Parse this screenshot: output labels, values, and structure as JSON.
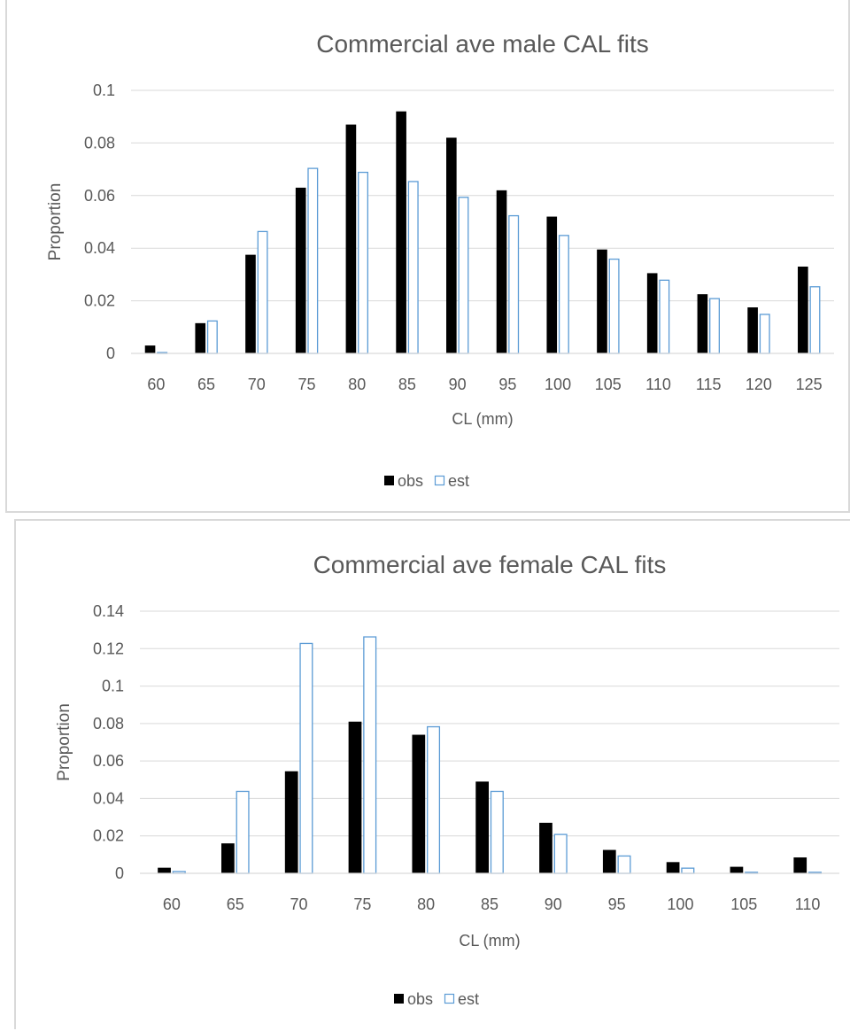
{
  "chart_data": [
    {
      "type": "bar",
      "title": "Commercial ave male CAL fits",
      "xlabel": "CL (mm)",
      "ylabel": "Proportion",
      "ylim": [
        0,
        0.1
      ],
      "yticks": [
        "0",
        "0.02",
        "0.04",
        "0.06",
        "0.08",
        "0.1"
      ],
      "categories": [
        "60",
        "65",
        "70",
        "75",
        "80",
        "85",
        "90",
        "95",
        "100",
        "105",
        "110",
        "115",
        "120",
        "125"
      ],
      "series": [
        {
          "name": "obs",
          "color": "#000000",
          "fill": true,
          "values": [
            0.003,
            0.0115,
            0.0375,
            0.063,
            0.087,
            0.092,
            0.082,
            0.062,
            0.052,
            0.0395,
            0.0305,
            0.0225,
            0.0175,
            0.033
          ]
        },
        {
          "name": "est",
          "color": "#5b9bd5",
          "fill": false,
          "values": [
            0.0005,
            0.0125,
            0.0465,
            0.0705,
            0.069,
            0.0655,
            0.0595,
            0.0525,
            0.045,
            0.036,
            0.028,
            0.021,
            0.015,
            0.0255
          ]
        }
      ],
      "grid": true,
      "legend": "bottom"
    },
    {
      "type": "bar",
      "title": "Commercial ave female CAL fits",
      "xlabel": "CL (mm)",
      "ylabel": "Proportion",
      "ylim": [
        0,
        0.14
      ],
      "yticks": [
        "0",
        "0.02",
        "0.04",
        "0.06",
        "0.08",
        "0.1",
        "0.12",
        "0.14"
      ],
      "categories": [
        "60",
        "65",
        "70",
        "75",
        "80",
        "85",
        "90",
        "95",
        "100",
        "105",
        "110"
      ],
      "series": [
        {
          "name": "obs",
          "color": "#000000",
          "fill": true,
          "values": [
            0.003,
            0.016,
            0.0545,
            0.081,
            0.074,
            0.049,
            0.027,
            0.0125,
            0.006,
            0.0035,
            0.0085
          ]
        },
        {
          "name": "est",
          "color": "#5b9bd5",
          "fill": false,
          "values": [
            0.0012,
            0.044,
            0.123,
            0.1265,
            0.0785,
            0.044,
            0.021,
            0.0095,
            0.003,
            0.0008,
            0.0008
          ]
        }
      ],
      "grid": true,
      "legend": "bottom"
    }
  ]
}
